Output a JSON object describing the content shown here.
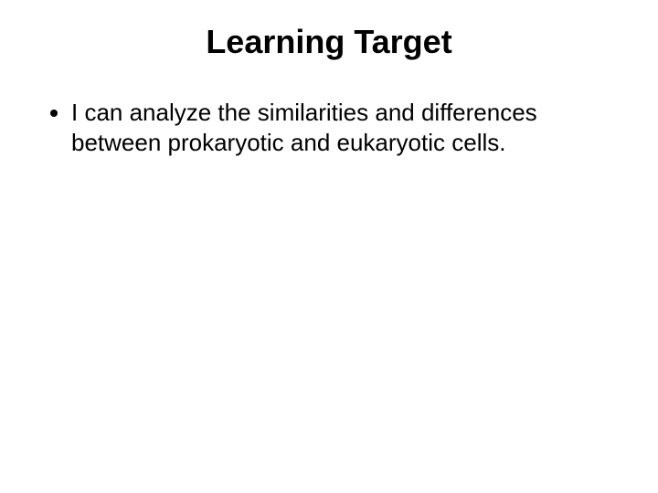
{
  "slide": {
    "title": "Learning Target",
    "title_fontsize": 36,
    "title_weight": "bold",
    "title_color": "#000000",
    "bullets": [
      "I can analyze the similarities and differences between prokaryotic and eukaryotic cells."
    ],
    "bullet_fontsize": 26,
    "bullet_color": "#000000",
    "bullet_line_height": 1.25,
    "background_color": "#ffffff"
  }
}
